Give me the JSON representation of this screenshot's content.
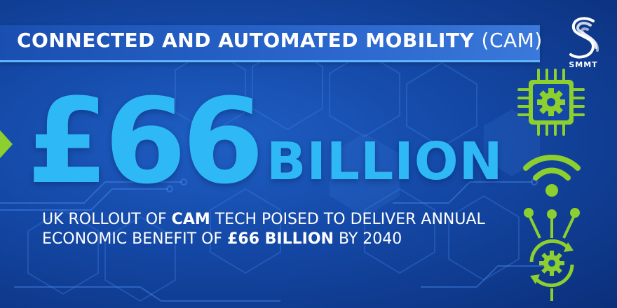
{
  "banner": {
    "title_bold": "CONNECTED AND AUTOMATED MOBILITY",
    "title_light": "(CAM)"
  },
  "logo": {
    "text": "SMMT",
    "icon": "smmt-s-logo"
  },
  "headline": {
    "amount": "£66",
    "unit": "BILLION"
  },
  "description": {
    "line1_pre": "UK ROLLOUT OF ",
    "line1_bold": "CAM",
    "line1_post": " TECH POISED TO DELIVER ANNUAL",
    "line2_pre": "ECONOMIC BENEFIT OF ",
    "line2_bold": "£66 BILLION",
    "line2_post": " BY 2040"
  },
  "icons": [
    "chip-gear-icon",
    "wifi-icon",
    "network-gear-icon"
  ],
  "colors": {
    "background": "#1448a6",
    "accent_blue": "#2fb8f6",
    "accent_green": "#8ccf2e",
    "text": "#ffffff"
  }
}
